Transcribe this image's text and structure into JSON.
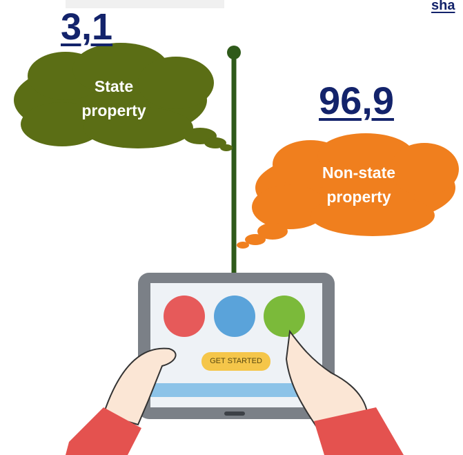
{
  "heading_fragment": "sha",
  "shares": [
    {
      "value": "3,1",
      "label": "State property"
    },
    {
      "value": "96,9",
      "label": "Non-state property"
    }
  ],
  "tablet": {
    "button": "GET STARTED"
  }
}
